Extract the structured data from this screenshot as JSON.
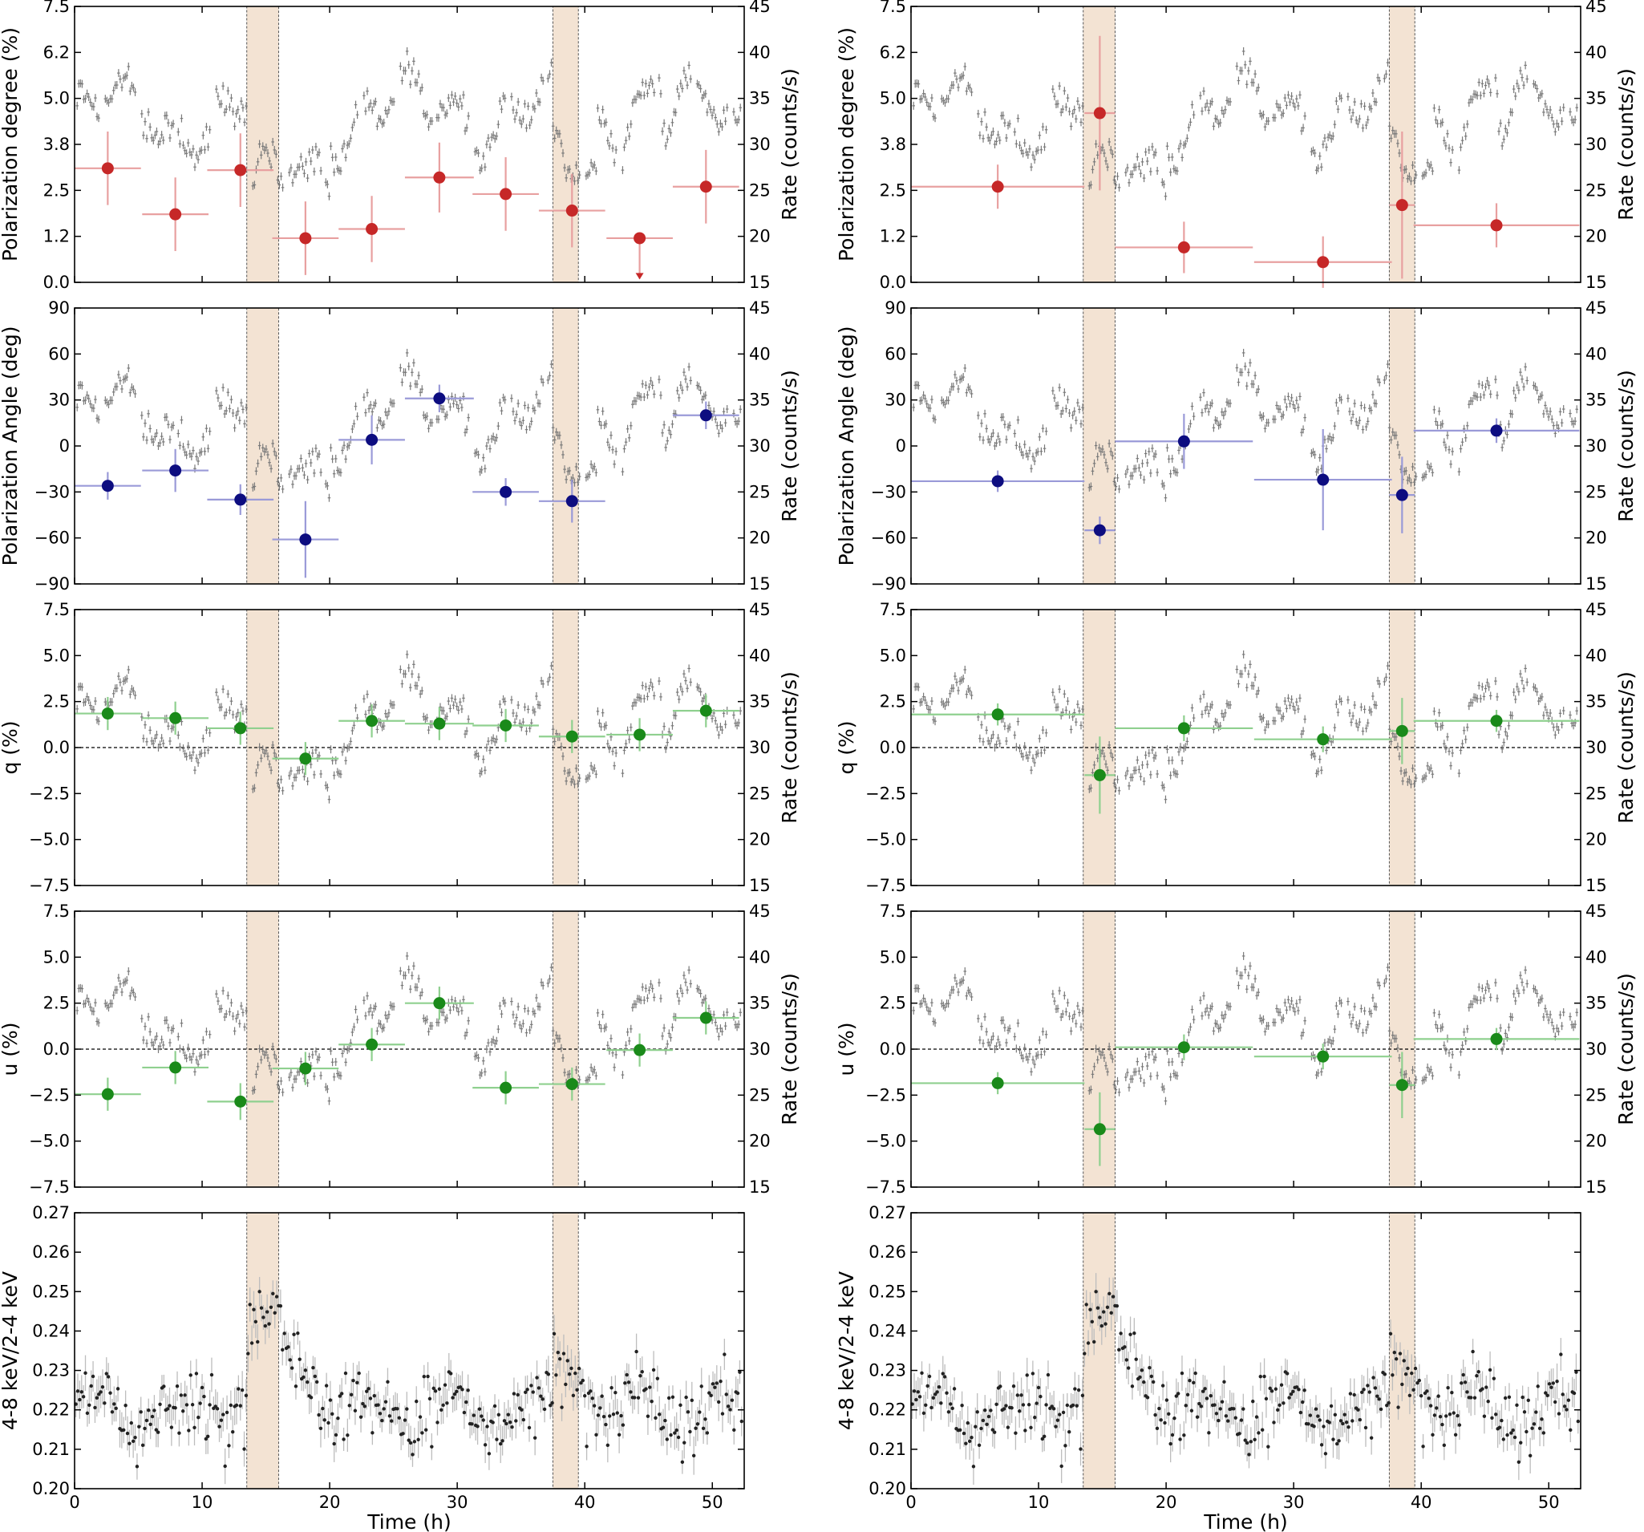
{
  "colors": {
    "pd": "#c62828",
    "pd_light": "#e8a0a0",
    "pa": "#0d0d80",
    "pa_light": "#9a9ad8",
    "qu": "#1a8a1a",
    "qu_light": "#8fd08f",
    "rate": "#7a7a7a",
    "hr": "#222222",
    "hr_err": "#bdbdbd",
    "shade": "#f3e3d3"
  },
  "chart_data": [
    {
      "type": "scatter",
      "panel": "left-pd",
      "ylabel": "Polarization degree (%)",
      "y2label": "Rate (counts/s)",
      "ylim": [
        0,
        7.5
      ],
      "yticks": [
        "0.0",
        "1.2",
        "2.5",
        "3.8",
        "5.0",
        "6.2",
        "7.5"
      ],
      "y2lim": [
        15,
        45
      ],
      "y2ticks": [
        "15",
        "20",
        "25",
        "30",
        "35",
        "40",
        "45"
      ],
      "xlim": [
        0,
        52.5
      ],
      "xticks": [
        "0",
        "10",
        "20",
        "30",
        "40",
        "50"
      ],
      "shaded": [
        [
          13.5,
          16.0
        ],
        [
          37.5,
          39.5
        ]
      ],
      "series": [
        {
          "name": "PD",
          "x": [
            2.6,
            7.9,
            13.0,
            18.1,
            23.3,
            28.6,
            33.8,
            39.0,
            44.3,
            49.5
          ],
          "xerr": [
            2.6,
            2.6,
            2.6,
            2.6,
            2.6,
            2.7,
            2.6,
            2.6,
            2.6,
            2.6
          ],
          "y": [
            3.1,
            1.85,
            3.05,
            1.2,
            1.45,
            2.85,
            2.4,
            1.95,
            1.2,
            2.6
          ],
          "yerr": [
            1.0,
            1.0,
            1.0,
            1.0,
            0.9,
            0.95,
            1.0,
            1.0,
            0,
            1.0
          ],
          "upper_limit": [
            false,
            false,
            false,
            false,
            false,
            false,
            false,
            false,
            true,
            false
          ]
        }
      ]
    },
    {
      "type": "scatter",
      "panel": "right-pd",
      "ylabel": "Polarization degree (%)",
      "y2label": "Rate (counts/s)",
      "ylim": [
        0,
        7.5
      ],
      "yticks": [
        "0.0",
        "1.2",
        "2.5",
        "3.8",
        "5.0",
        "6.2",
        "7.5"
      ],
      "y2lim": [
        15,
        45
      ],
      "y2ticks": [
        "15",
        "20",
        "25",
        "30",
        "35",
        "40",
        "45"
      ],
      "xlim": [
        0,
        52.5
      ],
      "xticks": [
        "0",
        "10",
        "20",
        "30",
        "40",
        "50"
      ],
      "shaded": [
        [
          13.5,
          16.0
        ],
        [
          37.5,
          39.5
        ]
      ],
      "series": [
        {
          "name": "PD",
          "x": [
            6.8,
            14.8,
            21.4,
            32.3,
            38.5,
            45.9
          ],
          "xerr": [
            6.8,
            1.2,
            5.4,
            5.4,
            1.0,
            6.5
          ],
          "y": [
            2.6,
            4.6,
            0.95,
            0.55,
            2.1,
            1.55
          ],
          "yerr": [
            0.6,
            2.1,
            0.7,
            0.7,
            2.0,
            0.6
          ],
          "upper_limit": [
            false,
            false,
            false,
            false,
            false,
            false
          ]
        }
      ]
    },
    {
      "type": "scatter",
      "panel": "left-pa",
      "ylabel": "Polarization Angle (deg)",
      "y2label": "Rate (counts/s)",
      "ylim": [
        -90,
        90
      ],
      "yticks": [
        "−90",
        "−60",
        "−30",
        "0",
        "30",
        "60",
        "90"
      ],
      "y2lim": [
        15,
        45
      ],
      "y2ticks": [
        "15",
        "20",
        "25",
        "30",
        "35",
        "40",
        "45"
      ],
      "xlim": [
        0,
        52.5
      ],
      "xticks": [
        "0",
        "10",
        "20",
        "30",
        "40",
        "50"
      ],
      "shaded": [
        [
          13.5,
          16.0
        ],
        [
          37.5,
          39.5
        ]
      ],
      "series": [
        {
          "name": "PA",
          "x": [
            2.6,
            7.9,
            13.0,
            18.1,
            23.3,
            28.6,
            33.8,
            39.0,
            49.5
          ],
          "xerr": [
            2.6,
            2.6,
            2.6,
            2.6,
            2.6,
            2.7,
            2.6,
            2.6,
            2.6
          ],
          "y": [
            -26,
            -16,
            -35,
            -61,
            4,
            31,
            -30,
            -36,
            20
          ],
          "yerr": [
            9,
            14,
            10,
            25,
            16,
            9,
            9,
            14,
            9
          ]
        }
      ]
    },
    {
      "type": "scatter",
      "panel": "right-pa",
      "ylabel": "Polarization Angle (deg)",
      "y2label": "Rate (counts/s)",
      "ylim": [
        -90,
        90
      ],
      "yticks": [
        "−90",
        "−60",
        "−30",
        "0",
        "30",
        "60",
        "90"
      ],
      "y2lim": [
        15,
        45
      ],
      "y2ticks": [
        "15",
        "20",
        "25",
        "30",
        "35",
        "40",
        "45"
      ],
      "xlim": [
        0,
        52.5
      ],
      "xticks": [
        "0",
        "10",
        "20",
        "30",
        "40",
        "50"
      ],
      "shaded": [
        [
          13.5,
          16.0
        ],
        [
          37.5,
          39.5
        ]
      ],
      "series": [
        {
          "name": "PA",
          "x": [
            6.8,
            14.8,
            21.4,
            32.3,
            38.5,
            45.9
          ],
          "xerr": [
            6.8,
            1.2,
            5.4,
            5.4,
            1.0,
            6.5
          ],
          "y": [
            -23,
            -55,
            3,
            -22,
            -32,
            10
          ],
          "yerr": [
            7,
            9,
            18,
            33,
            25,
            8
          ]
        }
      ]
    },
    {
      "type": "scatter",
      "panel": "left-q",
      "ylabel": "q (%)",
      "y2label": "Rate (counts/s)",
      "ylim": [
        -7.5,
        7.5
      ],
      "yticks": [
        "−7.5",
        "−5.0",
        "−2.5",
        "0.0",
        "2.5",
        "5.0",
        "7.5"
      ],
      "y2lim": [
        15,
        45
      ],
      "y2ticks": [
        "15",
        "20",
        "25",
        "30",
        "35",
        "40",
        "45"
      ],
      "xlim": [
        0,
        52.5
      ],
      "xticks": [
        "0",
        "10",
        "20",
        "30",
        "40",
        "50"
      ],
      "shaded": [
        [
          13.5,
          16.0
        ],
        [
          37.5,
          39.5
        ]
      ],
      "series": [
        {
          "name": "q",
          "x": [
            2.6,
            7.9,
            13.0,
            18.1,
            23.3,
            28.6,
            33.8,
            39.0,
            44.3,
            49.5
          ],
          "xerr": [
            2.6,
            2.6,
            2.6,
            2.6,
            2.6,
            2.7,
            2.6,
            2.6,
            2.6,
            2.6
          ],
          "y": [
            1.85,
            1.6,
            1.05,
            -0.6,
            1.45,
            1.3,
            1.2,
            0.6,
            0.7,
            2.0
          ],
          "yerr": [
            0.9,
            0.9,
            0.9,
            0.9,
            0.9,
            0.9,
            0.9,
            0.9,
            0.9,
            0.9
          ]
        }
      ]
    },
    {
      "type": "scatter",
      "panel": "right-q",
      "ylabel": "q (%)",
      "y2label": "Rate (counts/s)",
      "ylim": [
        -7.5,
        7.5
      ],
      "yticks": [
        "−7.5",
        "−5.0",
        "−2.5",
        "0.0",
        "2.5",
        "5.0",
        "7.5"
      ],
      "y2lim": [
        15,
        45
      ],
      "y2ticks": [
        "15",
        "20",
        "25",
        "30",
        "35",
        "40",
        "45"
      ],
      "xlim": [
        0,
        52.5
      ],
      "xticks": [
        "0",
        "10",
        "20",
        "30",
        "40",
        "50"
      ],
      "shaded": [
        [
          13.5,
          16.0
        ],
        [
          37.5,
          39.5
        ]
      ],
      "series": [
        {
          "name": "q",
          "x": [
            6.8,
            14.8,
            21.4,
            32.3,
            38.5,
            45.9
          ],
          "xerr": [
            6.8,
            1.2,
            5.4,
            5.4,
            1.0,
            6.5
          ],
          "y": [
            1.8,
            -1.5,
            1.05,
            0.45,
            0.9,
            1.45
          ],
          "yerr": [
            0.6,
            2.1,
            0.7,
            0.7,
            1.8,
            0.6
          ]
        }
      ]
    },
    {
      "type": "scatter",
      "panel": "left-u",
      "ylabel": "u (%)",
      "y2label": "Rate (counts/s)",
      "ylim": [
        -7.5,
        7.5
      ],
      "yticks": [
        "−7.5",
        "−5.0",
        "−2.5",
        "0.0",
        "2.5",
        "5.0",
        "7.5"
      ],
      "y2lim": [
        15,
        45
      ],
      "y2ticks": [
        "15",
        "20",
        "25",
        "30",
        "35",
        "40",
        "45"
      ],
      "xlim": [
        0,
        52.5
      ],
      "xticks": [
        "0",
        "10",
        "20",
        "30",
        "40",
        "50"
      ],
      "shaded": [
        [
          13.5,
          16.0
        ],
        [
          37.5,
          39.5
        ]
      ],
      "series": [
        {
          "name": "u",
          "x": [
            2.6,
            7.9,
            13.0,
            18.1,
            23.3,
            28.6,
            33.8,
            39.0,
            44.3,
            49.5
          ],
          "xerr": [
            2.6,
            2.6,
            2.6,
            2.6,
            2.6,
            2.7,
            2.6,
            2.6,
            2.6,
            2.6
          ],
          "y": [
            -2.45,
            -1.0,
            -2.85,
            -1.05,
            0.25,
            2.5,
            -2.1,
            -1.9,
            -0.05,
            1.7
          ],
          "yerr": [
            0.9,
            0.9,
            1.0,
            0.9,
            0.9,
            0.9,
            0.9,
            0.9,
            0.9,
            0.9
          ]
        }
      ]
    },
    {
      "type": "scatter",
      "panel": "right-u",
      "ylabel": "u (%)",
      "y2label": "Rate (counts/s)",
      "ylim": [
        -7.5,
        7.5
      ],
      "yticks": [
        "−7.5",
        "−5.0",
        "−2.5",
        "0.0",
        "2.5",
        "5.0",
        "7.5"
      ],
      "y2lim": [
        15,
        45
      ],
      "y2ticks": [
        "15",
        "20",
        "25",
        "30",
        "35",
        "40",
        "45"
      ],
      "xlim": [
        0,
        52.5
      ],
      "xticks": [
        "0",
        "10",
        "20",
        "30",
        "40",
        "50"
      ],
      "shaded": [
        [
          13.5,
          16.0
        ],
        [
          37.5,
          39.5
        ]
      ],
      "series": [
        {
          "name": "u",
          "x": [
            6.8,
            14.8,
            21.4,
            32.3,
            38.5,
            45.9
          ],
          "xerr": [
            6.8,
            1.2,
            5.4,
            5.4,
            1.0,
            6.5
          ],
          "y": [
            -1.85,
            -4.35,
            0.1,
            -0.4,
            -1.95,
            0.55
          ],
          "yerr": [
            0.6,
            2.0,
            0.7,
            0.7,
            1.8,
            0.6
          ]
        }
      ]
    },
    {
      "type": "scatter",
      "panel": "left-hr",
      "ylabel": "4-8 keV/2-4 keV",
      "xlabel": "Time (h)",
      "ylim": [
        0.2,
        0.27
      ],
      "yticks": [
        "0.20",
        "0.21",
        "0.22",
        "0.23",
        "0.24",
        "0.25",
        "0.26",
        "0.27"
      ],
      "xlim": [
        0,
        52.5
      ],
      "xticks": [
        "0",
        "10",
        "20",
        "30",
        "40",
        "50"
      ],
      "shaded": [
        [
          13.5,
          16.0
        ],
        [
          37.5,
          39.5
        ]
      ]
    },
    {
      "type": "scatter",
      "panel": "right-hr",
      "ylabel": "4-8 keV/2-4 keV",
      "xlabel": "Time (h)",
      "ylim": [
        0.2,
        0.27
      ],
      "yticks": [
        "0.20",
        "0.21",
        "0.22",
        "0.23",
        "0.24",
        "0.25",
        "0.26",
        "0.27"
      ],
      "xlim": [
        0,
        52.5
      ],
      "xticks": [
        "0",
        "10",
        "20",
        "30",
        "40",
        "50"
      ],
      "shaded": [
        [
          13.5,
          16.0
        ],
        [
          37.5,
          39.5
        ]
      ]
    }
  ]
}
